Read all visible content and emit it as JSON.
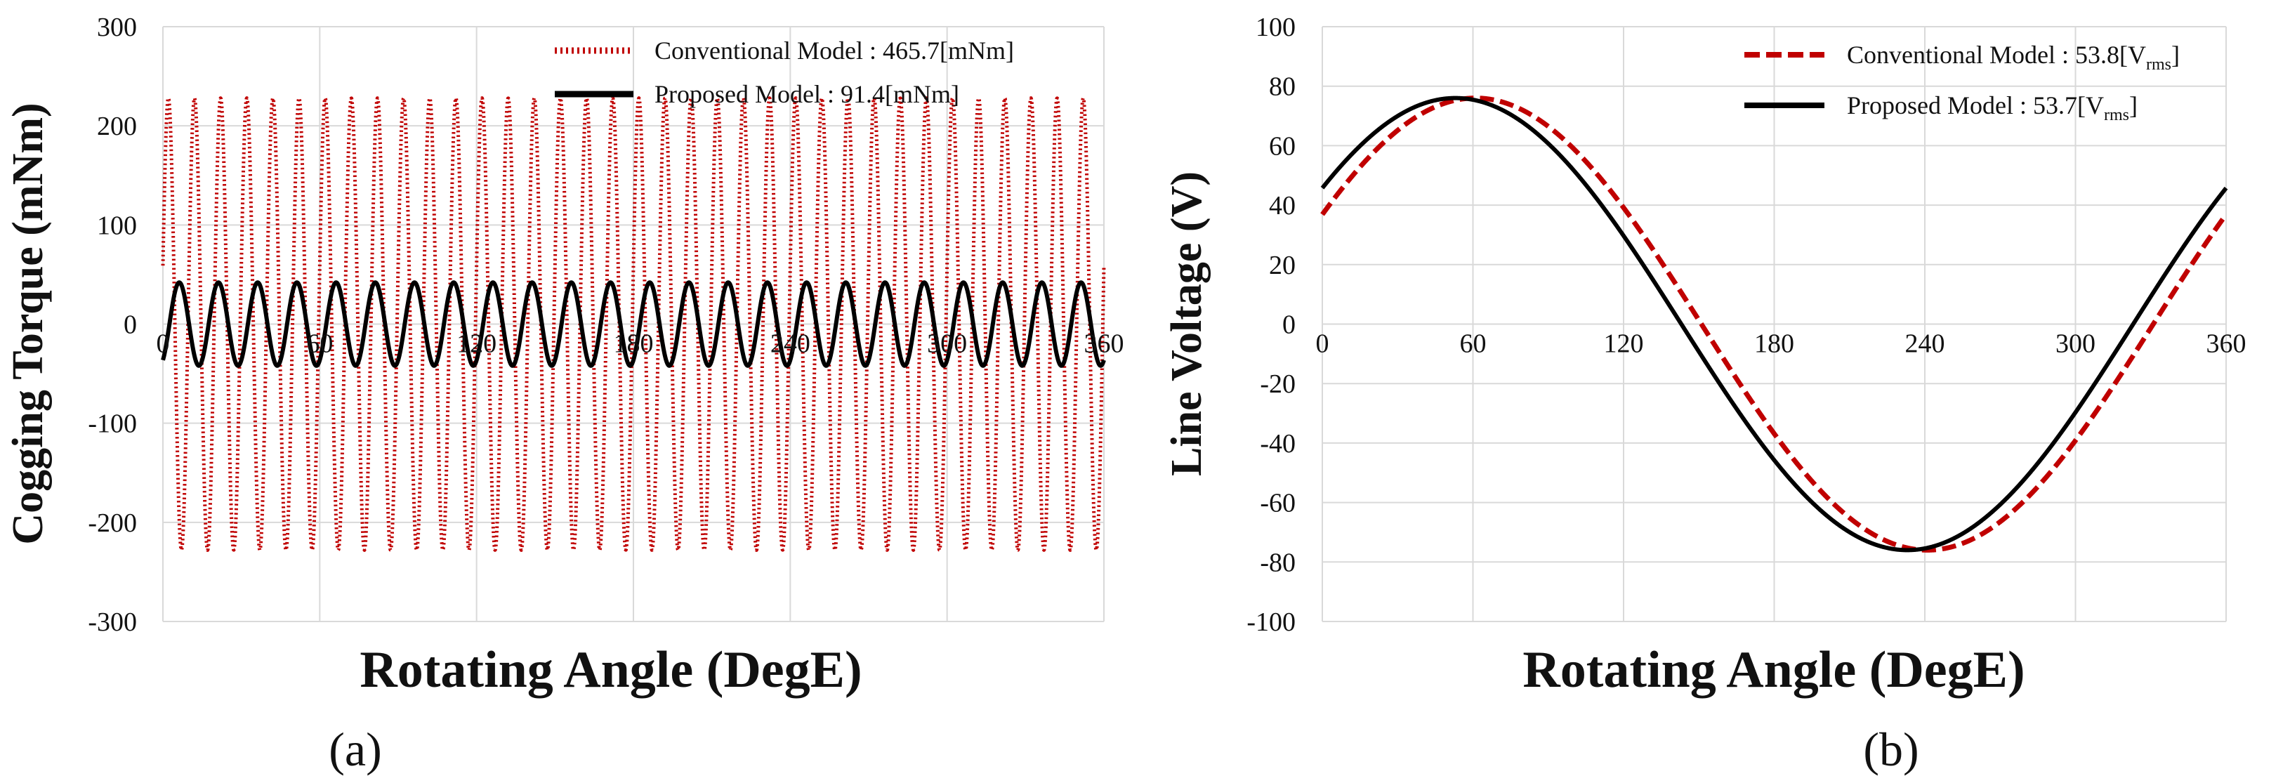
{
  "chart_data": [
    {
      "type": "line",
      "panel_label": "(a)",
      "xlabel": "Rotating Angle (DegE)",
      "ylabel": "Cogging Torque (mNm)",
      "xlim": [
        0,
        360
      ],
      "ylim": [
        -300,
        300
      ],
      "xticks": [
        "0",
        "60",
        "120",
        "180",
        "240",
        "300",
        "360"
      ],
      "yticks": [
        "300",
        "200",
        "100",
        "0",
        "-100",
        "-200",
        "-300"
      ],
      "grid": true,
      "legend_position": "top-right",
      "series": [
        {
          "name": "Conventional Model : 465.7[mNm]",
          "color": "#c00000",
          "style": "dotted",
          "waveform": {
            "amplitude": 228,
            "cycles": 36,
            "phase_deg": 15
          }
        },
        {
          "name": "Proposed Model : 91.4[mNm]",
          "color": "#000000",
          "style": "solid",
          "waveform": {
            "amplitude": 42,
            "cycles": 24,
            "phase_deg": -60
          }
        }
      ]
    },
    {
      "type": "line",
      "panel_label": "(b)",
      "xlabel": "Rotating Angle (DegE)",
      "ylabel": "Line Voltage (V)",
      "xlim": [
        0,
        360
      ],
      "ylim": [
        -100,
        100
      ],
      "xticks": [
        "0",
        "60",
        "120",
        "180",
        "240",
        "300",
        "360"
      ],
      "yticks": [
        "100",
        "80",
        "60",
        "40",
        "20",
        "0",
        "-20",
        "-40",
        "-60",
        "-80",
        "-100"
      ],
      "grid": true,
      "legend_position": "top-right",
      "series": [
        {
          "name": "Conventional Model : 53.8[V",
          "name_sub": "rms",
          "name_end": "]",
          "color": "#c00000",
          "style": "dashed",
          "waveform": {
            "amplitude": 76,
            "phase_deg": 29
          }
        },
        {
          "name": "Proposed Model : 53.7[V",
          "name_sub": "rms",
          "name_end": "]",
          "color": "#000000",
          "style": "solid",
          "waveform": {
            "amplitude": 76,
            "phase_deg": 37
          }
        }
      ]
    }
  ]
}
